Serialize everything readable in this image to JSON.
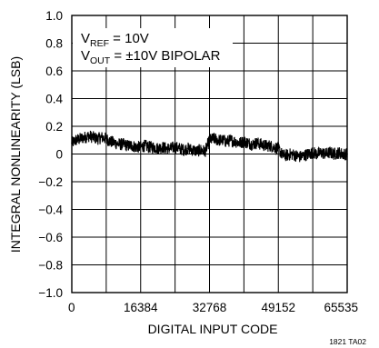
{
  "chart_data": {
    "type": "line",
    "xlabel": "DIGITAL INPUT CODE",
    "ylabel": "INTEGRAL NONLINEARITY (LSB)",
    "xlim": [
      0,
      65535
    ],
    "ylim": [
      -1.0,
      1.0
    ],
    "x_ticks": [
      0,
      16384,
      32768,
      49152,
      65535
    ],
    "x_tick_labels": [
      "0",
      "16384",
      "32768",
      "49152",
      "65535"
    ],
    "y_ticks": [
      1.0,
      0.8,
      0.6,
      0.4,
      0.2,
      0,
      -0.2,
      -0.4,
      -0.6,
      -0.8,
      -1.0
    ],
    "y_tick_labels": [
      "1.0",
      "0.8",
      "0.6",
      "0.4",
      "0.2",
      "0",
      "−0.2",
      "−0.4",
      "−0.6",
      "−0.8",
      "−1.0"
    ],
    "grid": true,
    "series": [
      {
        "x": [
          0,
          1024,
          2048,
          3072,
          4096,
          5120,
          6144,
          7168,
          8192,
          9216,
          10240,
          11264,
          12288,
          13312,
          14336,
          15360,
          16384,
          17408,
          18432,
          19456,
          20480,
          21504,
          22528,
          23552,
          24576,
          25600,
          26624,
          27648,
          28672,
          29696,
          30720,
          31744,
          32768,
          33792,
          34816,
          35840,
          36864,
          37888,
          38912,
          39936,
          40960,
          41984,
          43008,
          44032,
          45056,
          46080,
          47104,
          48128,
          49152,
          50176,
          51200,
          52224,
          53248,
          54272,
          55296,
          56320,
          57344,
          58368,
          59392,
          60416,
          61440,
          62464,
          63488,
          64512,
          65535
        ],
        "y": [
          0.08,
          0.1,
          0.11,
          0.12,
          0.13,
          0.12,
          0.11,
          0.12,
          0.11,
          0.09,
          0.08,
          0.07,
          0.07,
          0.06,
          0.06,
          0.05,
          0.05,
          0.06,
          0.05,
          0.05,
          0.04,
          0.05,
          0.04,
          0.04,
          0.05,
          0.04,
          0.03,
          0.04,
          0.03,
          0.02,
          0.03,
          0.02,
          0.1,
          0.11,
          0.1,
          0.1,
          0.09,
          0.1,
          0.09,
          0.08,
          0.09,
          0.08,
          0.07,
          0.08,
          0.07,
          0.06,
          0.06,
          0.05,
          0.04,
          -0.01,
          -0.01,
          0.0,
          -0.01,
          -0.02,
          -0.01,
          0.0,
          0.01,
          0.0,
          0.01,
          0.0,
          0.01,
          0.0,
          0.01,
          0.0,
          0.0
        ]
      }
    ],
    "annotations": {
      "line1": {
        "main": "V",
        "sub": "REF",
        "rest": " = 10V"
      },
      "line2": {
        "main": "V",
        "sub": "OUT",
        "rest": " = ±10V BIPOLAR"
      }
    },
    "figure_code": "1821 TA02"
  }
}
